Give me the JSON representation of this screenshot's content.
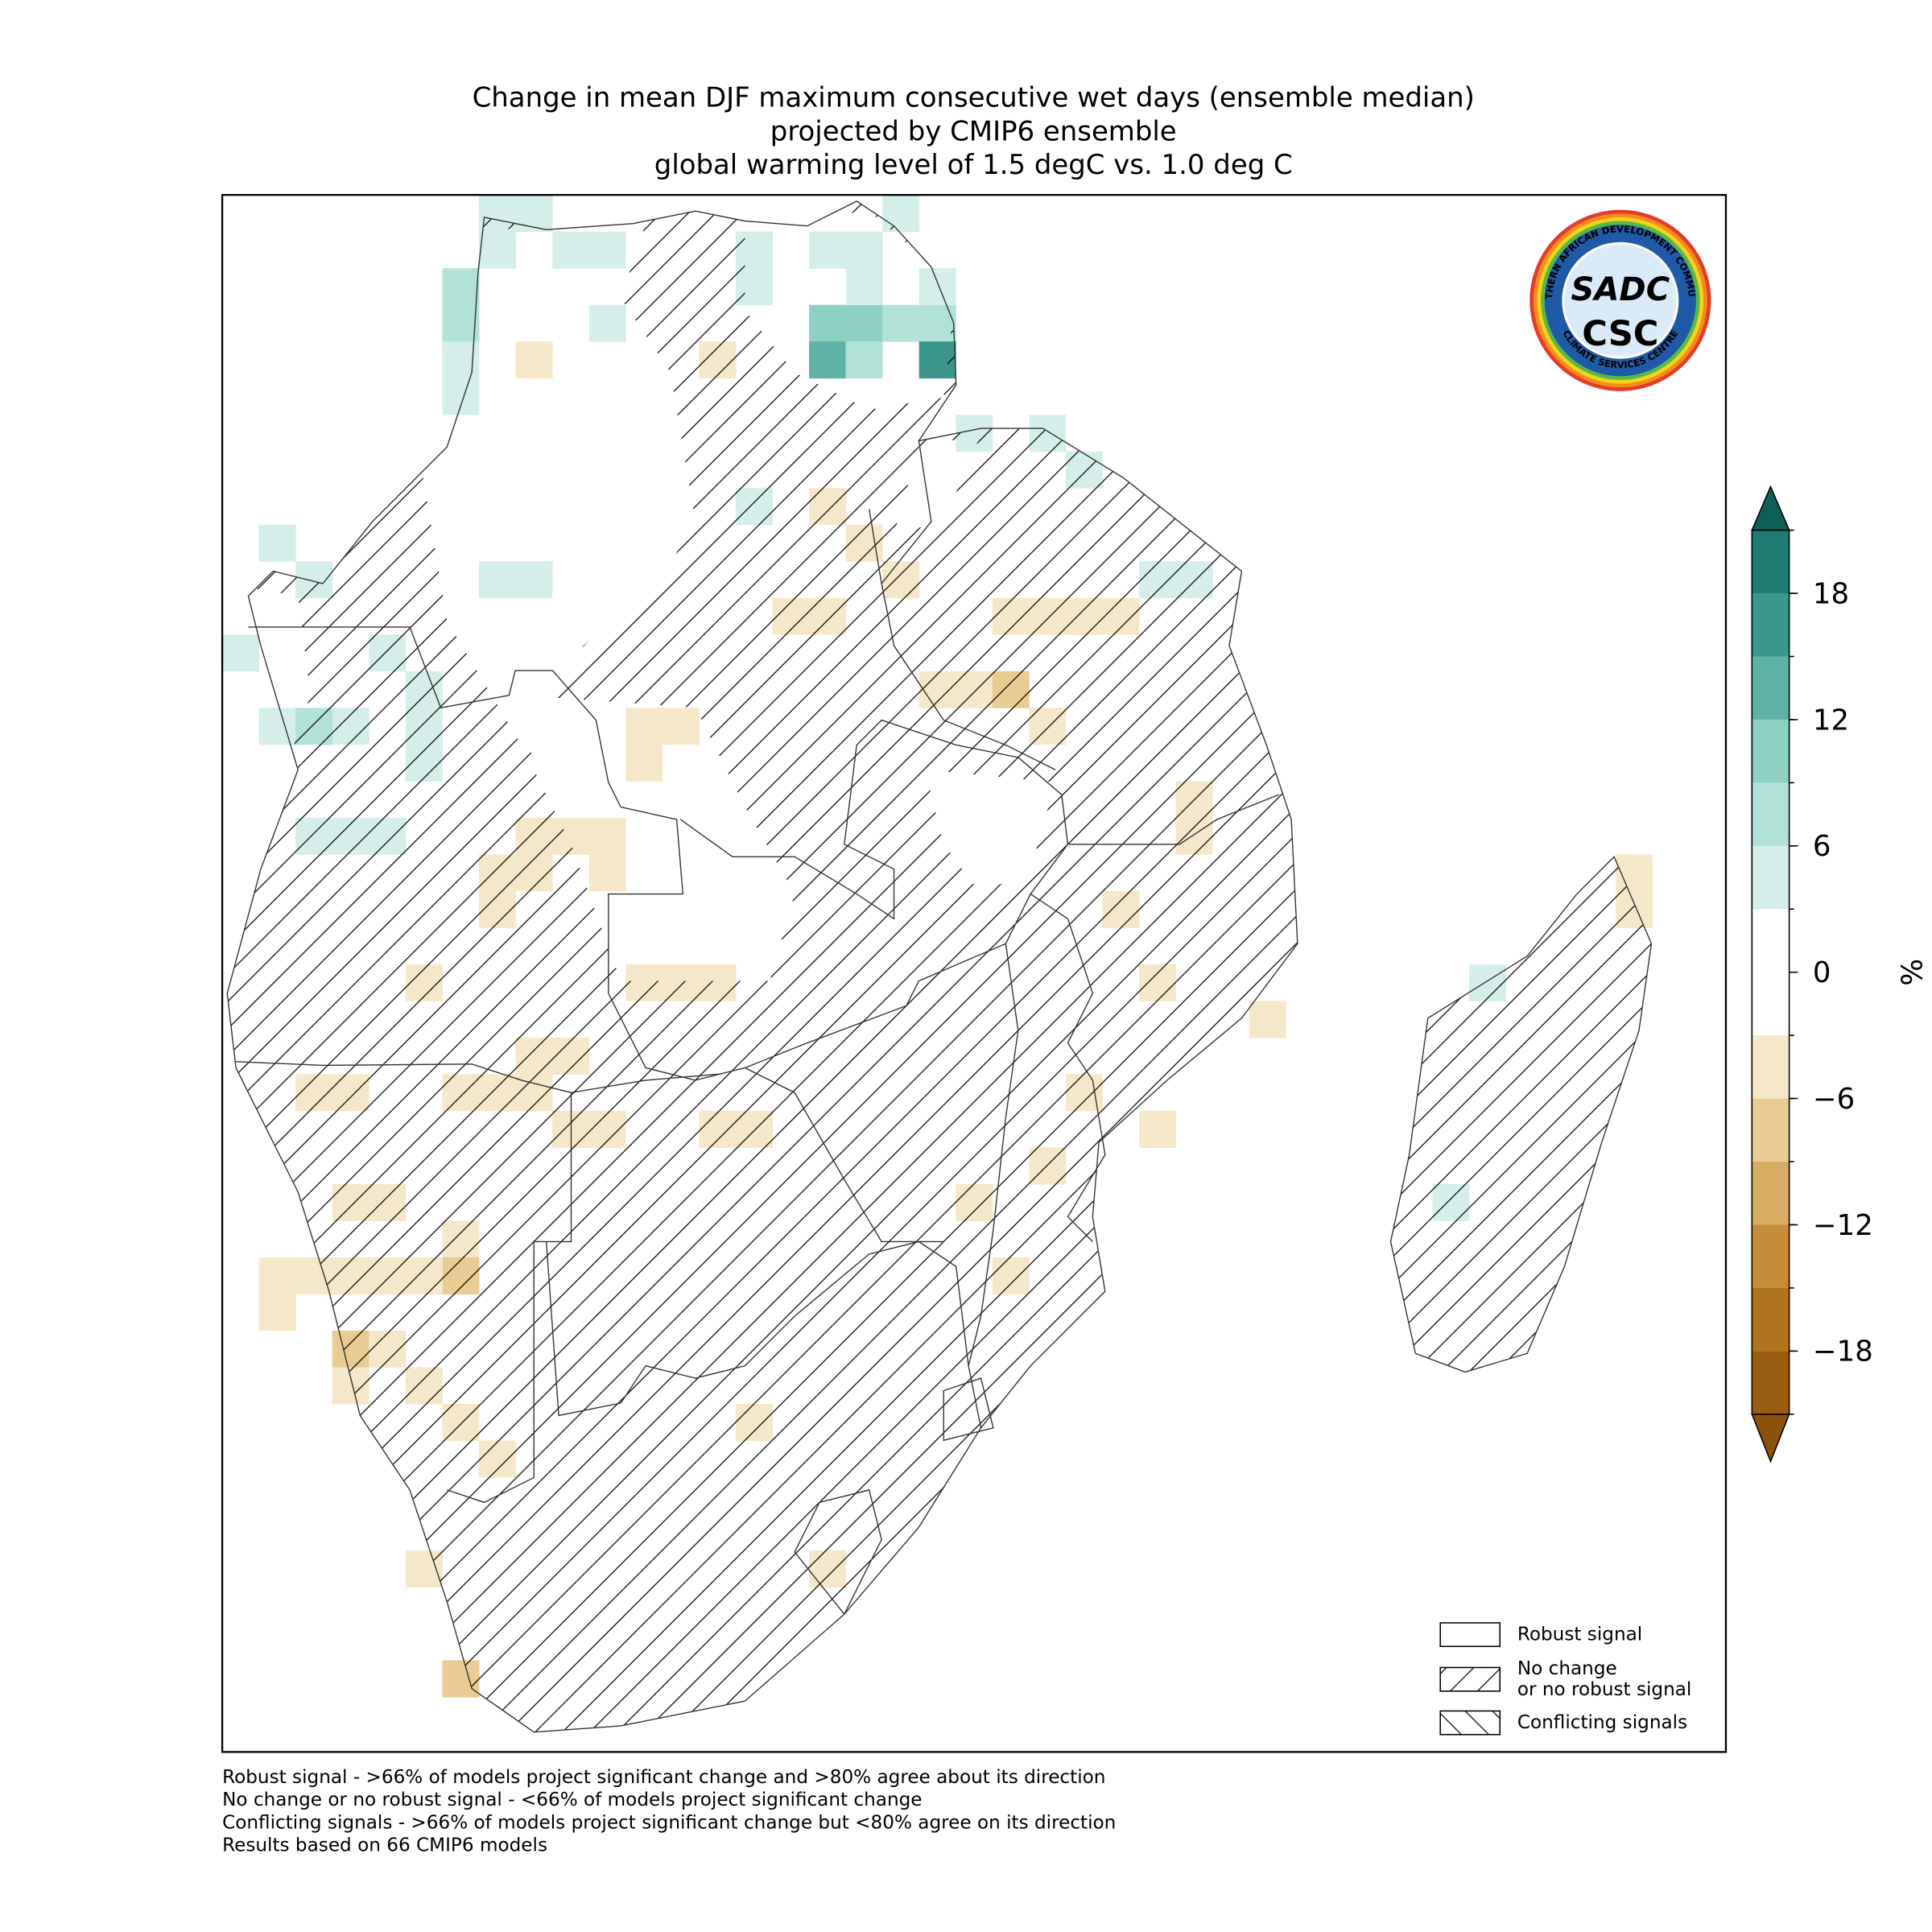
{
  "chart_data": {
    "type": "map",
    "title": [
      "Change in mean DJF maximum consecutive wet days (ensemble median)",
      "projected by CMIP6 ensemble",
      "global warming level of 1.5 degC vs. 1.0 deg C"
    ],
    "xlim": [
      10,
      51
    ],
    "ylim": [
      5,
      -37.5
    ],
    "colorbar": {
      "label": "%",
      "levels": [
        -21,
        -18,
        -15,
        -12,
        -9,
        -6,
        -3,
        3,
        6,
        9,
        12,
        15,
        18,
        21
      ],
      "colors": [
        "#995d12",
        "#b0731d",
        "#c58c3a",
        "#d7ac63",
        "#e8cc93",
        "#f5e7c9",
        "#ffffff",
        "#d5eee9",
        "#b2e1d8",
        "#8ed0c2",
        "#5fb3a6",
        "#3b968b",
        "#1f7a72"
      ],
      "under": "#8c510a",
      "over": "#0f5f56",
      "ticks": [
        {
          "value": -18,
          "label": "−18"
        },
        {
          "value": -12,
          "label": "−12"
        },
        {
          "value": -6,
          "label": "−6"
        },
        0,
        6,
        12,
        18
      ]
    },
    "cells": [
      {
        "lon": 17.5,
        "lat": 4.5,
        "value": 4.5
      },
      {
        "lon": 18.5,
        "lat": 4.5,
        "value": 4.5
      },
      {
        "lon": 28.5,
        "lat": 4.5,
        "value": 4.5
      },
      {
        "lon": 17.5,
        "lat": 3.5,
        "value": 4.5
      },
      {
        "lon": 19.5,
        "lat": 3.5,
        "value": 4.5
      },
      {
        "lon": 20.5,
        "lat": 3.5,
        "value": 4.5
      },
      {
        "lon": 24.5,
        "lat": 3.5,
        "value": 4.5
      },
      {
        "lon": 26.5,
        "lat": 3.5,
        "value": 4.5
      },
      {
        "lon": 27.5,
        "lat": 3.5,
        "value": 4.5
      },
      {
        "lon": 16.5,
        "lat": 2.5,
        "value": 7.5
      },
      {
        "lon": 16.5,
        "lat": 1.5,
        "value": 7.5
      },
      {
        "lon": 16.5,
        "lat": 0.5,
        "value": 4.5
      },
      {
        "lon": 16.5,
        "lat": -0.5,
        "value": 4.5
      },
      {
        "lon": 20.5,
        "lat": 1.5,
        "value": 4.5
      },
      {
        "lon": 26.5,
        "lat": 1.5,
        "value": 10.5
      },
      {
        "lon": 27.5,
        "lat": 1.5,
        "value": 10.5
      },
      {
        "lon": 28.5,
        "lat": 1.5,
        "value": 7.5
      },
      {
        "lon": 29.5,
        "lat": 1.5,
        "value": 7.5
      },
      {
        "lon": 26.5,
        "lat": 0.5,
        "value": 13.5
      },
      {
        "lon": 27.5,
        "lat": 0.5,
        "value": 7.5
      },
      {
        "lon": 29.5,
        "lat": 0.5,
        "value": 16.5
      },
      {
        "lon": 24.5,
        "lat": 2.5,
        "value": 4.5
      },
      {
        "lon": 27.5,
        "lat": 2.5,
        "value": 4.5
      },
      {
        "lon": 29.5,
        "lat": 2.5,
        "value": 4.5
      },
      {
        "lon": 17.5,
        "lat": -5.5,
        "value": 4.5
      },
      {
        "lon": 18.5,
        "lat": -5.5,
        "value": 4.5
      },
      {
        "lon": 11.5,
        "lat": -4.5,
        "value": 4.5
      },
      {
        "lon": 12.5,
        "lat": -5.5,
        "value": 4.5
      },
      {
        "lon": 10.5,
        "lat": -7.5,
        "value": 4.5
      },
      {
        "lon": 14.5,
        "lat": -7.5,
        "value": 4.5
      },
      {
        "lon": 15.5,
        "lat": -8.5,
        "value": 4.5
      },
      {
        "lon": 11.5,
        "lat": -9.5,
        "value": 4.5
      },
      {
        "lon": 12.5,
        "lat": -9.5,
        "value": 7.5
      },
      {
        "lon": 13.5,
        "lat": -9.5,
        "value": 4.5
      },
      {
        "lon": 15.5,
        "lat": -9.5,
        "value": 4.5
      },
      {
        "lon": 15.5,
        "lat": -10.5,
        "value": 4.5
      },
      {
        "lon": 12.5,
        "lat": -12.5,
        "value": 4.5
      },
      {
        "lon": 13.5,
        "lat": -12.5,
        "value": 4.5
      },
      {
        "lon": 14.5,
        "lat": -12.5,
        "value": 4.5
      },
      {
        "lon": 30.5,
        "lat": -1.5,
        "value": 4.5
      },
      {
        "lon": 32.5,
        "lat": -1.5,
        "value": 4.5
      },
      {
        "lon": 33.5,
        "lat": -2.5,
        "value": 4.5
      },
      {
        "lon": 36.5,
        "lat": -5.5,
        "value": 4.5
      },
      {
        "lon": 35.5,
        "lat": -5.5,
        "value": 4.5
      },
      {
        "lon": 44.5,
        "lat": -16.5,
        "value": 4.5
      },
      {
        "lon": 43.5,
        "lat": -22.5,
        "value": 4.5
      },
      {
        "lon": 24.5,
        "lat": -3.5,
        "value": 4.5
      },
      {
        "lon": 18.5,
        "lat": 0.5,
        "value": -4.5
      },
      {
        "lon": 23.5,
        "lat": 0.5,
        "value": -4.5
      },
      {
        "lon": 26.5,
        "lat": -3.5,
        "value": -4.5
      },
      {
        "lon": 27.5,
        "lat": -4.5,
        "value": -4.5
      },
      {
        "lon": 28.5,
        "lat": -5.5,
        "value": -4.5
      },
      {
        "lon": 25.5,
        "lat": -6.5,
        "value": -4.5
      },
      {
        "lon": 26.5,
        "lat": -6.5,
        "value": -4.5
      },
      {
        "lon": 31.5,
        "lat": -6.5,
        "value": -4.5
      },
      {
        "lon": 32.5,
        "lat": -6.5,
        "value": -4.5
      },
      {
        "lon": 33.5,
        "lat": -6.5,
        "value": -4.5
      },
      {
        "lon": 34.5,
        "lat": -6.5,
        "value": -4.5
      },
      {
        "lon": 29.5,
        "lat": -8.5,
        "value": -4.5
      },
      {
        "lon": 30.5,
        "lat": -8.5,
        "value": -4.5
      },
      {
        "lon": 31.5,
        "lat": -8.5,
        "value": -7.5
      },
      {
        "lon": 32.5,
        "lat": -9.5,
        "value": -4.5
      },
      {
        "lon": 21.5,
        "lat": -9.5,
        "value": -4.5
      },
      {
        "lon": 22.5,
        "lat": -9.5,
        "value": -4.5
      },
      {
        "lon": 21.5,
        "lat": -10.5,
        "value": -4.5
      },
      {
        "lon": 18.5,
        "lat": -12.5,
        "value": -4.5
      },
      {
        "lon": 19.5,
        "lat": -12.5,
        "value": -4.5
      },
      {
        "lon": 20.5,
        "lat": -12.5,
        "value": -4.5
      },
      {
        "lon": 17.5,
        "lat": -13.5,
        "value": -4.5
      },
      {
        "lon": 18.5,
        "lat": -13.5,
        "value": -4.5
      },
      {
        "lon": 20.5,
        "lat": -13.5,
        "value": -4.5
      },
      {
        "lon": 17.5,
        "lat": -14.5,
        "value": -4.5
      },
      {
        "lon": 15.5,
        "lat": -16.5,
        "value": -4.5
      },
      {
        "lon": 21.5,
        "lat": -16.5,
        "value": -4.5
      },
      {
        "lon": 22.5,
        "lat": -16.5,
        "value": -4.5
      },
      {
        "lon": 23.5,
        "lat": -16.5,
        "value": -4.5
      },
      {
        "lon": 18.5,
        "lat": -18.5,
        "value": -4.5
      },
      {
        "lon": 19.5,
        "lat": -18.5,
        "value": -4.5
      },
      {
        "lon": 12.5,
        "lat": -19.5,
        "value": -4.5
      },
      {
        "lon": 13.5,
        "lat": -19.5,
        "value": -4.5
      },
      {
        "lon": 16.5,
        "lat": -19.5,
        "value": -4.5
      },
      {
        "lon": 17.5,
        "lat": -19.5,
        "value": -4.5
      },
      {
        "lon": 18.5,
        "lat": -19.5,
        "value": -4.5
      },
      {
        "lon": 19.5,
        "lat": -20.5,
        "value": -4.5
      },
      {
        "lon": 20.5,
        "lat": -20.5,
        "value": -4.5
      },
      {
        "lon": 23.5,
        "lat": -20.5,
        "value": -4.5
      },
      {
        "lon": 24.5,
        "lat": -20.5,
        "value": -4.5
      },
      {
        "lon": 13.5,
        "lat": -22.5,
        "value": -4.5
      },
      {
        "lon": 14.5,
        "lat": -22.5,
        "value": -4.5
      },
      {
        "lon": 16.5,
        "lat": -23.5,
        "value": -4.5
      },
      {
        "lon": 13.5,
        "lat": -24.5,
        "value": -4.5
      },
      {
        "lon": 14.5,
        "lat": -24.5,
        "value": -4.5
      },
      {
        "lon": 16.5,
        "lat": -24.5,
        "value": -7.5
      },
      {
        "lon": 12.5,
        "lat": -24.5,
        "value": -4.5
      },
      {
        "lon": 15.5,
        "lat": -24.5,
        "value": -4.5
      },
      {
        "lon": 11.5,
        "lat": -24.5,
        "value": -4.5
      },
      {
        "lon": 11.5,
        "lat": -25.5,
        "value": -4.5
      },
      {
        "lon": 13.5,
        "lat": -26.5,
        "value": -7.5
      },
      {
        "lon": 14.5,
        "lat": -26.5,
        "value": -4.5
      },
      {
        "lon": 13.5,
        "lat": -27.5,
        "value": -4.5
      },
      {
        "lon": 15.5,
        "lat": -27.5,
        "value": -4.5
      },
      {
        "lon": 16.5,
        "lat": -28.5,
        "value": -4.5
      },
      {
        "lon": 17.5,
        "lat": -29.5,
        "value": -4.5
      },
      {
        "lon": 15.5,
        "lat": -32.5,
        "value": -4.5
      },
      {
        "lon": 16.5,
        "lat": -35.5,
        "value": -7.5
      },
      {
        "lon": 26.5,
        "lat": -32.5,
        "value": -4.5
      },
      {
        "lon": 48.5,
        "lat": -13.5,
        "value": -4.5
      },
      {
        "lon": 48.5,
        "lat": -14.5,
        "value": -4.5
      },
      {
        "lon": 36.5,
        "lat": -11.5,
        "value": -4.5
      },
      {
        "lon": 36.5,
        "lat": -12.5,
        "value": -4.5
      },
      {
        "lon": 34.5,
        "lat": -14.5,
        "value": -4.5
      },
      {
        "lon": 35.5,
        "lat": -16.5,
        "value": -4.5
      },
      {
        "lon": 33.5,
        "lat": -19.5,
        "value": -4.5
      },
      {
        "lon": 31.5,
        "lat": -24.5,
        "value": -4.5
      },
      {
        "lon": 24.5,
        "lat": -28.5,
        "value": -4.5
      },
      {
        "lon": 32.5,
        "lat": -21.5,
        "value": -4.5
      },
      {
        "lon": 30.5,
        "lat": -22.5,
        "value": -4.5
      },
      {
        "lon": 38.5,
        "lat": -17.5,
        "value": -4.5
      },
      {
        "lon": 35.5,
        "lat": -20.5,
        "value": -4.5
      }
    ],
    "legend": [
      {
        "label": [
          "Robust signal"
        ],
        "hatch": "none"
      },
      {
        "label": [
          "No change",
          "or no robust signal"
        ],
        "hatch": "forward"
      },
      {
        "label": [
          "Conflicting signals"
        ],
        "hatch": "back"
      }
    ],
    "notes": [
      "Robust signal - >66% of models project significant change and >80% agree about its direction",
      "No change or no robust signal - <66% of models project significant change",
      "Conflicting signals - >66% of models project significant change but <80% agree on its direction",
      "Results based on 66 CMIP6 models"
    ],
    "logo": {
      "mark": "SADC",
      "main": "CSC",
      "top": "SOUTHERN AFRICAN DEVELOPMENT COMMUNITY",
      "bottom": "CLIMATE SERVICES CENTRE"
    }
  }
}
